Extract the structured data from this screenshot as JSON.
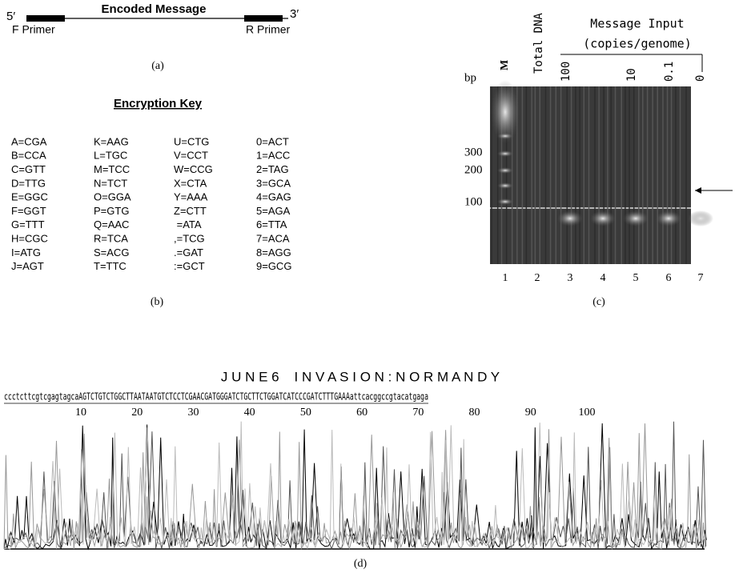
{
  "panel_a": {
    "five_prime": "5′",
    "three_prime": "3′",
    "title": "Encoded Message",
    "f_primer": "F Primer",
    "r_primer": "R Primer",
    "label": "(a)"
  },
  "panel_b": {
    "title": "Encryption Key",
    "label": "(b)",
    "columns": [
      [
        "A=CGA",
        "B=CCA",
        "C=GTT",
        "D=TTG",
        "E=GGC",
        "F=GGT",
        "G=TTT",
        "H=CGC",
        "I=ATG",
        "J=AGT"
      ],
      [
        "K=AAG",
        "L=TGC",
        "M=TCC",
        "N=TCT",
        "O=GGA",
        "P=GTG",
        "Q=AAC",
        "R=TCA",
        "S=ACG",
        "T=TTC"
      ],
      [
        "U=CTG",
        "V=CCT",
        "W=CCG",
        "X=CTA",
        "Y=AAA",
        "Z=CTT",
        " =ATA",
        ",=TCG",
        ".=GAT",
        ":=GCT"
      ],
      [
        "0=ACT",
        "1=ACC",
        "2=TAG",
        "3=GCA",
        "4=GAG",
        "5=AGA",
        "6=TTA",
        "7=ACA",
        "8=AGG",
        "9=GCG"
      ]
    ]
  },
  "panel_c": {
    "bp": "bp",
    "marker": "M",
    "total_dna": "Total DNA",
    "input_title": "Message Input",
    "input_units": "(copies/genome)",
    "inputs": [
      "100",
      "10",
      "0.1",
      "0"
    ],
    "sizes": [
      "300",
      "200",
      "100"
    ],
    "lanes": [
      "1",
      "2",
      "3",
      "4",
      "5",
      "6",
      "7"
    ],
    "label": "(c)"
  },
  "panel_d": {
    "title": "J U N E 6    I N V A S I O N : N O R M A N D Y",
    "sequence": "ccctcttcgtcgagtagcaAGTCTGTCTGGCTTAATAATGTCTCCTCGAACGATGGGATCTGCTTCTGGATCATCCCGATCTTTGAAAattcacggccgtacatgaga",
    "positions": [
      10,
      20,
      30,
      40,
      50,
      60,
      70,
      80,
      90,
      100
    ],
    "label": "(d)"
  }
}
